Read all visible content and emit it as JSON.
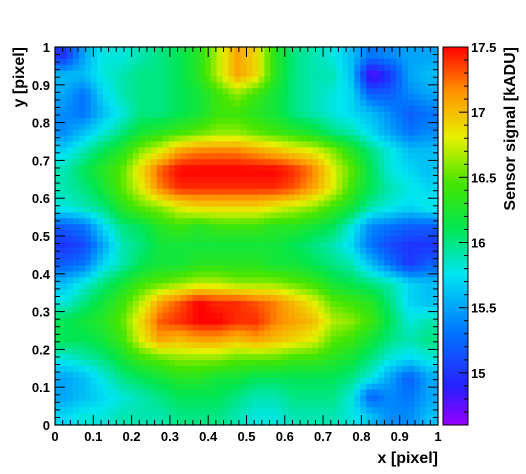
{
  "chart_data": {
    "type": "heatmap",
    "title": "",
    "xlabel": "x [pixel]",
    "ylabel": "y [pixel]",
    "colorbar_label": "Sensor signal [kADU]",
    "xlim": [
      0,
      1
    ],
    "ylim": [
      0,
      1
    ],
    "zlim": [
      14.6,
      17.5
    ],
    "x_ticks": [
      "0",
      "0.1",
      "0.2",
      "0.3",
      "0.4",
      "0.5",
      "0.6",
      "0.7",
      "0.8",
      "0.9",
      "1"
    ],
    "y_ticks": [
      "0",
      "0.1",
      "0.2",
      "0.3",
      "0.4",
      "0.5",
      "0.6",
      "0.7",
      "0.8",
      "0.9",
      "1"
    ],
    "colorbar_ticks": [
      "15",
      "15.5",
      "16",
      "16.5",
      "17",
      "17.5"
    ],
    "colorbar_tick_values": [
      15,
      15.5,
      16,
      16.5,
      17,
      17.5
    ],
    "grid_x": [
      0.025,
      0.075,
      0.125,
      0.175,
      0.225,
      0.275,
      0.325,
      0.375,
      0.425,
      0.475,
      0.525,
      0.575,
      0.625,
      0.675,
      0.725,
      0.775,
      0.825,
      0.875,
      0.925,
      0.975
    ],
    "grid_y": [
      0.025,
      0.075,
      0.125,
      0.175,
      0.225,
      0.275,
      0.325,
      0.375,
      0.425,
      0.475,
      0.525,
      0.575,
      0.625,
      0.675,
      0.725,
      0.775,
      0.825,
      0.875,
      0.925,
      0.975
    ],
    "z": [
      [
        15.7,
        15.8,
        15.8,
        15.9,
        15.9,
        15.9,
        16.0,
        16.0,
        16.0,
        15.9,
        15.8,
        15.8,
        15.9,
        15.9,
        15.9,
        15.8,
        15.6,
        15.4,
        15.4,
        15.6
      ],
      [
        15.5,
        15.6,
        15.7,
        15.8,
        15.9,
        16.0,
        16.1,
        16.1,
        16.1,
        16.0,
        15.9,
        15.9,
        16.0,
        16.0,
        16.0,
        15.8,
        15.2,
        15.4,
        15.3,
        15.5
      ],
      [
        15.5,
        15.6,
        15.8,
        16.0,
        16.1,
        16.2,
        16.3,
        16.3,
        16.2,
        16.2,
        16.1,
        16.1,
        16.1,
        16.1,
        16.1,
        16.0,
        15.8,
        15.5,
        15.2,
        15.5
      ],
      [
        15.8,
        15.9,
        16.0,
        16.2,
        16.4,
        16.5,
        16.6,
        16.6,
        16.6,
        16.5,
        16.5,
        16.5,
        16.4,
        16.4,
        16.3,
        16.2,
        16.0,
        15.8,
        15.7,
        15.8
      ],
      [
        16.1,
        16.1,
        16.2,
        16.4,
        16.8,
        17.1,
        17.0,
        17.1,
        17.1,
        17.0,
        17.1,
        17.0,
        16.9,
        16.8,
        16.5,
        16.4,
        16.2,
        16.0,
        15.9,
        16.0
      ],
      [
        16.1,
        16.2,
        16.3,
        16.5,
        16.9,
        17.3,
        17.4,
        17.5,
        17.5,
        17.4,
        17.4,
        17.2,
        17.1,
        17.0,
        16.7,
        16.6,
        16.4,
        16.1,
        15.8,
        15.9
      ],
      [
        15.8,
        16.0,
        16.2,
        16.4,
        16.7,
        17.1,
        17.3,
        17.5,
        17.4,
        17.4,
        17.3,
        17.2,
        17.0,
        16.8,
        16.5,
        16.4,
        16.3,
        16.0,
        15.7,
        15.6
      ],
      [
        15.6,
        15.8,
        16.0,
        16.2,
        16.4,
        16.5,
        16.6,
        16.7,
        16.7,
        16.6,
        16.6,
        16.6,
        16.5,
        16.4,
        16.2,
        16.1,
        16.0,
        15.9,
        15.7,
        15.6
      ],
      [
        15.2,
        15.3,
        15.7,
        15.9,
        16.1,
        16.2,
        16.2,
        16.3,
        16.3,
        16.3,
        16.3,
        16.2,
        16.2,
        16.1,
        16.0,
        15.9,
        15.6,
        15.3,
        15.0,
        15.2
      ],
      [
        15.0,
        15.1,
        15.5,
        15.9,
        16.0,
        16.2,
        16.2,
        16.2,
        16.2,
        16.2,
        16.2,
        16.2,
        16.1,
        16.0,
        15.9,
        15.7,
        15.3,
        15.1,
        15.0,
        15.0
      ],
      [
        15.2,
        15.3,
        15.7,
        16.0,
        16.1,
        16.3,
        16.4,
        16.3,
        16.4,
        16.4,
        16.4,
        16.3,
        16.3,
        16.2,
        16.1,
        15.8,
        15.4,
        15.3,
        15.2,
        15.2
      ],
      [
        15.8,
        15.9,
        16.0,
        16.3,
        16.5,
        16.6,
        16.8,
        16.9,
        16.9,
        16.9,
        16.9,
        16.8,
        16.7,
        16.6,
        16.4,
        16.2,
        15.9,
        15.8,
        15.7,
        15.8
      ],
      [
        15.9,
        16.0,
        16.2,
        16.5,
        16.8,
        17.2,
        17.4,
        17.4,
        17.4,
        17.4,
        17.4,
        17.4,
        17.3,
        17.1,
        16.8,
        16.4,
        16.1,
        15.9,
        15.8,
        15.7
      ],
      [
        15.9,
        16.1,
        16.3,
        16.5,
        16.9,
        17.3,
        17.5,
        17.5,
        17.5,
        17.5,
        17.5,
        17.5,
        17.4,
        17.2,
        16.8,
        16.5,
        16.1,
        15.8,
        15.7,
        15.6
      ],
      [
        15.7,
        15.9,
        16.1,
        16.3,
        16.6,
        16.8,
        17.1,
        17.2,
        17.2,
        17.2,
        17.1,
        17.0,
        16.9,
        16.8,
        16.6,
        16.3,
        16.0,
        15.8,
        15.6,
        15.6
      ],
      [
        15.4,
        15.6,
        15.8,
        16.0,
        16.2,
        16.3,
        16.4,
        16.5,
        16.6,
        16.6,
        16.5,
        16.4,
        16.3,
        16.2,
        16.0,
        15.9,
        15.7,
        15.5,
        15.3,
        15.4
      ],
      [
        15.4,
        15.3,
        15.6,
        15.8,
        16.0,
        16.0,
        16.1,
        16.2,
        16.4,
        16.4,
        16.3,
        16.2,
        16.0,
        15.9,
        15.8,
        15.7,
        15.6,
        15.4,
        15.2,
        15.3
      ],
      [
        15.5,
        15.3,
        15.7,
        15.9,
        16.0,
        16.0,
        16.1,
        16.2,
        16.4,
        16.6,
        16.4,
        16.2,
        16.0,
        15.9,
        15.8,
        15.7,
        15.2,
        15.2,
        15.4,
        15.5
      ],
      [
        15.6,
        15.6,
        15.8,
        15.9,
        16.0,
        16.0,
        16.1,
        16.3,
        16.7,
        17.1,
        16.9,
        16.3,
        16.0,
        15.9,
        15.9,
        15.6,
        14.7,
        15.0,
        15.5,
        15.6
      ],
      [
        15.0,
        15.5,
        15.8,
        15.8,
        15.9,
        16.0,
        16.1,
        16.3,
        16.7,
        17.1,
        16.9,
        16.3,
        16.0,
        15.9,
        15.8,
        15.6,
        15.3,
        15.4,
        15.5,
        15.5
      ]
    ]
  }
}
